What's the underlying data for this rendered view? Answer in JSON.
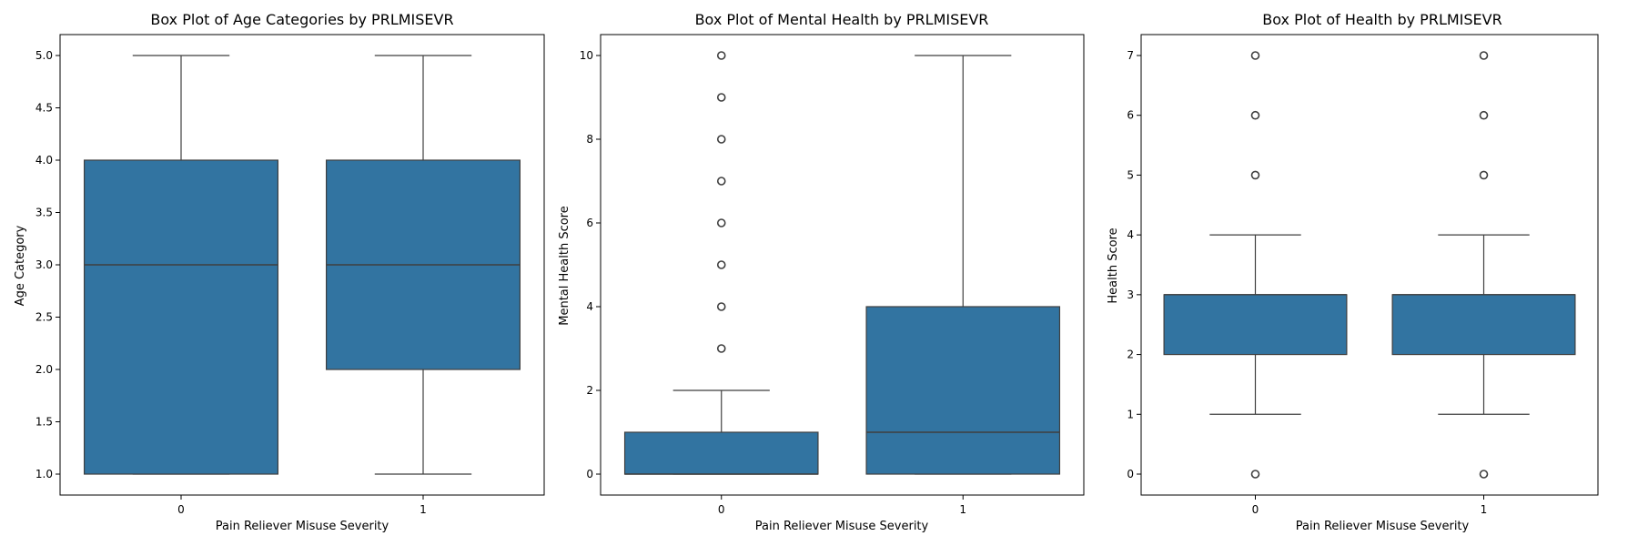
{
  "chart_data": [
    {
      "type": "box",
      "title": "Box Plot of Age Categories by PRLMISEVR",
      "xlabel": "Pain Reliever Misuse Severity",
      "ylabel": "Age Category",
      "categories": [
        "0",
        "1"
      ],
      "ylim": [
        0.8,
        5.2
      ],
      "yticks": [
        1.0,
        1.5,
        2.0,
        2.5,
        3.0,
        3.5,
        4.0,
        4.5,
        5.0
      ],
      "ytick_labels": [
        "1.0",
        "1.5",
        "2.0",
        "2.5",
        "3.0",
        "3.5",
        "4.0",
        "4.5",
        "5.0"
      ],
      "boxes": [
        {
          "q1": 1,
          "median": 3,
          "q3": 4,
          "whislo": 1,
          "whishi": 5,
          "fliers": []
        },
        {
          "q1": 2,
          "median": 3,
          "q3": 4,
          "whislo": 1,
          "whishi": 5,
          "fliers": []
        }
      ]
    },
    {
      "type": "box",
      "title": "Box Plot of Mental Health by PRLMISEVR",
      "xlabel": "Pain Reliever Misuse Severity",
      "ylabel": "Mental Health Score",
      "categories": [
        "0",
        "1"
      ],
      "ylim": [
        -0.5,
        10.5
      ],
      "yticks": [
        0,
        2,
        4,
        6,
        8,
        10
      ],
      "ytick_labels": [
        "0",
        "2",
        "4",
        "6",
        "8",
        "10"
      ],
      "boxes": [
        {
          "q1": 0,
          "median": 0,
          "q3": 1,
          "whislo": 0,
          "whishi": 2,
          "fliers": [
            3,
            4,
            5,
            6,
            7,
            8,
            9,
            10
          ]
        },
        {
          "q1": 0,
          "median": 1,
          "q3": 4,
          "whislo": 0,
          "whishi": 10,
          "fliers": []
        }
      ]
    },
    {
      "type": "box",
      "title": "Box Plot of Health by PRLMISEVR",
      "xlabel": "Pain Reliever Misuse Severity",
      "ylabel": "Health Score",
      "categories": [
        "0",
        "1"
      ],
      "ylim": [
        -0.35,
        7.35
      ],
      "yticks": [
        0,
        1,
        2,
        3,
        4,
        5,
        6,
        7
      ],
      "ytick_labels": [
        "0",
        "1",
        "2",
        "3",
        "4",
        "5",
        "6",
        "7"
      ],
      "boxes": [
        {
          "q1": 2,
          "median": 3,
          "q3": 3,
          "whislo": 1,
          "whishi": 4,
          "fliers": [
            0,
            5,
            6,
            7
          ]
        },
        {
          "q1": 2,
          "median": 3,
          "q3": 3,
          "whislo": 1,
          "whishi": 4,
          "fliers": [
            0,
            5,
            6,
            7
          ]
        }
      ]
    }
  ]
}
